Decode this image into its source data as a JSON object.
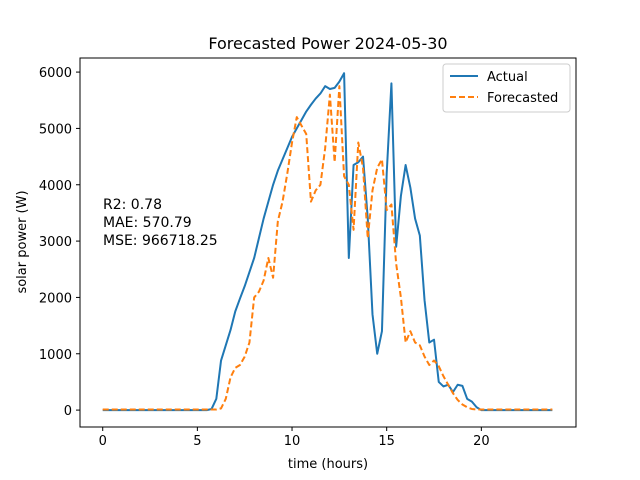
{
  "chart_data": {
    "type": "line",
    "title": "Forecasted Power 2024-05-30",
    "xlabel": "time (hours)",
    "ylabel": "solar power (W)",
    "xlim": [
      -1.2,
      25.0
    ],
    "ylim": [
      -300,
      6250
    ],
    "x_ticks": [
      0,
      5,
      10,
      15,
      20
    ],
    "y_ticks": [
      0,
      1000,
      2000,
      3000,
      4000,
      5000,
      6000
    ],
    "grid": false,
    "legend_position": "top-right",
    "annotations": [
      "R2: 0.78",
      "MAE: 570.79",
      "MSE: 966718.25"
    ],
    "series": [
      {
        "name": "Actual",
        "color": "#1f77b4",
        "dash": "solid",
        "points": [
          [
            0,
            0
          ],
          [
            0.25,
            0
          ],
          [
            0.5,
            0
          ],
          [
            0.75,
            0
          ],
          [
            1,
            0
          ],
          [
            1.25,
            0
          ],
          [
            1.5,
            0
          ],
          [
            1.75,
            0
          ],
          [
            2,
            0
          ],
          [
            2.25,
            0
          ],
          [
            2.5,
            0
          ],
          [
            2.75,
            0
          ],
          [
            3,
            0
          ],
          [
            3.25,
            0
          ],
          [
            3.5,
            0
          ],
          [
            3.75,
            0
          ],
          [
            4,
            0
          ],
          [
            4.25,
            0
          ],
          [
            4.5,
            0
          ],
          [
            4.75,
            0
          ],
          [
            5,
            0
          ],
          [
            5.25,
            0
          ],
          [
            5.5,
            0
          ],
          [
            5.75,
            20
          ],
          [
            6,
            200
          ],
          [
            6.25,
            880
          ],
          [
            6.5,
            1150
          ],
          [
            6.75,
            1420
          ],
          [
            7,
            1750
          ],
          [
            7.25,
            1980
          ],
          [
            7.5,
            2200
          ],
          [
            7.75,
            2450
          ],
          [
            8,
            2700
          ],
          [
            8.25,
            3050
          ],
          [
            8.5,
            3400
          ],
          [
            8.75,
            3700
          ],
          [
            9,
            4000
          ],
          [
            9.25,
            4250
          ],
          [
            9.5,
            4450
          ],
          [
            9.75,
            4650
          ],
          [
            10,
            4850
          ],
          [
            10.25,
            5000
          ],
          [
            10.5,
            5150
          ],
          [
            10.75,
            5300
          ],
          [
            11,
            5420
          ],
          [
            11.25,
            5530
          ],
          [
            11.5,
            5620
          ],
          [
            11.75,
            5750
          ],
          [
            12,
            5700
          ],
          [
            12.25,
            5720
          ],
          [
            12.5,
            5830
          ],
          [
            12.75,
            5980
          ],
          [
            13,
            2700
          ],
          [
            13.25,
            4350
          ],
          [
            13.5,
            4400
          ],
          [
            13.75,
            4500
          ],
          [
            14,
            3400
          ],
          [
            14.25,
            1700
          ],
          [
            14.5,
            1000
          ],
          [
            14.75,
            1400
          ],
          [
            15,
            4200
          ],
          [
            15.25,
            5800
          ],
          [
            15.5,
            2900
          ],
          [
            15.75,
            3800
          ],
          [
            16,
            4350
          ],
          [
            16.25,
            3950
          ],
          [
            16.5,
            3400
          ],
          [
            16.75,
            3100
          ],
          [
            17,
            1950
          ],
          [
            17.25,
            1200
          ],
          [
            17.5,
            1250
          ],
          [
            17.75,
            500
          ],
          [
            18,
            420
          ],
          [
            18.25,
            450
          ],
          [
            18.5,
            320
          ],
          [
            18.75,
            450
          ],
          [
            19,
            430
          ],
          [
            19.25,
            200
          ],
          [
            19.5,
            150
          ],
          [
            19.75,
            50
          ],
          [
            20,
            0
          ],
          [
            20.5,
            0
          ],
          [
            21,
            0
          ],
          [
            21.5,
            0
          ],
          [
            22,
            0
          ],
          [
            22.5,
            0
          ],
          [
            23,
            0
          ],
          [
            23.5,
            0
          ],
          [
            23.75,
            0
          ]
        ]
      },
      {
        "name": "Forecasted",
        "color": "#ff7f0e",
        "dash": "dashed",
        "points": [
          [
            0,
            10
          ],
          [
            0.25,
            10
          ],
          [
            0.5,
            10
          ],
          [
            0.75,
            10
          ],
          [
            1,
            10
          ],
          [
            1.25,
            10
          ],
          [
            1.5,
            10
          ],
          [
            1.75,
            10
          ],
          [
            2,
            10
          ],
          [
            2.25,
            10
          ],
          [
            2.5,
            10
          ],
          [
            2.75,
            10
          ],
          [
            3,
            10
          ],
          [
            3.25,
            10
          ],
          [
            3.5,
            10
          ],
          [
            3.75,
            10
          ],
          [
            4,
            10
          ],
          [
            4.25,
            10
          ],
          [
            4.5,
            10
          ],
          [
            4.75,
            10
          ],
          [
            5,
            10
          ],
          [
            5.25,
            10
          ],
          [
            5.5,
            10
          ],
          [
            5.75,
            10
          ],
          [
            6,
            10
          ],
          [
            6.25,
            30
          ],
          [
            6.5,
            200
          ],
          [
            6.75,
            580
          ],
          [
            7,
            750
          ],
          [
            7.25,
            800
          ],
          [
            7.5,
            950
          ],
          [
            7.75,
            1200
          ],
          [
            8,
            2000
          ],
          [
            8.25,
            2100
          ],
          [
            8.5,
            2300
          ],
          [
            8.75,
            2700
          ],
          [
            9,
            2350
          ],
          [
            9.25,
            3350
          ],
          [
            9.5,
            3700
          ],
          [
            9.75,
            4200
          ],
          [
            10,
            4750
          ],
          [
            10.25,
            5200
          ],
          [
            10.5,
            5050
          ],
          [
            10.75,
            4900
          ],
          [
            11,
            3700
          ],
          [
            11.25,
            3900
          ],
          [
            11.5,
            4000
          ],
          [
            11.75,
            4650
          ],
          [
            12,
            5600
          ],
          [
            12.25,
            4400
          ],
          [
            12.5,
            5750
          ],
          [
            12.75,
            4150
          ],
          [
            13,
            4000
          ],
          [
            13.25,
            3200
          ],
          [
            13.5,
            4750
          ],
          [
            13.75,
            4300
          ],
          [
            14,
            3050
          ],
          [
            14.25,
            3900
          ],
          [
            14.5,
            4300
          ],
          [
            14.75,
            4450
          ],
          [
            15,
            3550
          ],
          [
            15.25,
            3650
          ],
          [
            15.5,
            2600
          ],
          [
            15.75,
            2000
          ],
          [
            16,
            1200
          ],
          [
            16.25,
            1400
          ],
          [
            16.5,
            1200
          ],
          [
            16.75,
            1150
          ],
          [
            17,
            950
          ],
          [
            17.25,
            800
          ],
          [
            17.5,
            880
          ],
          [
            17.75,
            780
          ],
          [
            18,
            600
          ],
          [
            18.25,
            450
          ],
          [
            18.5,
            300
          ],
          [
            18.75,
            180
          ],
          [
            19,
            100
          ],
          [
            19.25,
            50
          ],
          [
            19.5,
            20
          ],
          [
            19.75,
            10
          ],
          [
            20,
            10
          ],
          [
            20.5,
            10
          ],
          [
            21,
            10
          ],
          [
            21.5,
            10
          ],
          [
            22,
            10
          ],
          [
            22.5,
            10
          ],
          [
            23,
            10
          ],
          [
            23.5,
            10
          ],
          [
            23.75,
            10
          ]
        ]
      }
    ]
  }
}
